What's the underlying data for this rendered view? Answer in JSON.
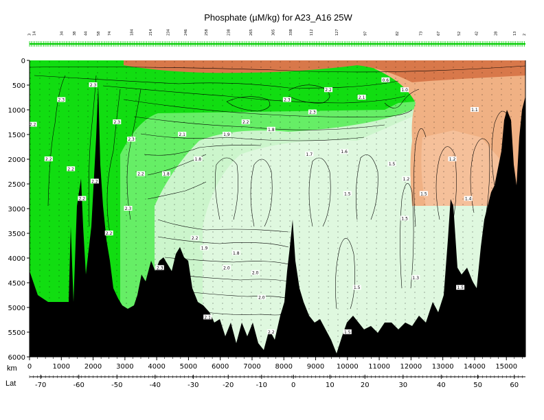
{
  "chart_data": {
    "type": "heatmap",
    "title": "Phosphate (µM/kg) for A23_A16 25W",
    "xlabel": "km",
    "lat_label": "Lat",
    "xlim": [
      0,
      15600
    ],
    "ylim": [
      6000,
      0
    ],
    "x_ticks": [
      0,
      1000,
      2000,
      3000,
      4000,
      5000,
      6000,
      7000,
      8000,
      9000,
      10000,
      11000,
      12000,
      13000,
      14000,
      15000
    ],
    "y_ticks": [
      0,
      500,
      1000,
      1500,
      2000,
      2500,
      3000,
      3500,
      4000,
      4500,
      5000,
      5500,
      6000
    ],
    "lat_ticks": [
      {
        "lat": "-70",
        "km": 350
      },
      {
        "lat": "-60",
        "km": 1550
      },
      {
        "lat": "-50",
        "km": 2750
      },
      {
        "lat": "-40",
        "km": 3950
      },
      {
        "lat": "-30",
        "km": 5150
      },
      {
        "lat": "-20",
        "km": 6250
      },
      {
        "lat": "-10",
        "km": 7300
      },
      {
        "lat": "0",
        "km": 8300
      },
      {
        "lat": "10",
        "km": 9450
      },
      {
        "lat": "20",
        "km": 10550
      },
      {
        "lat": "30",
        "km": 11750
      },
      {
        "lat": "40",
        "km": 12950
      },
      {
        "lat": "50",
        "km": 14100
      },
      {
        "lat": "60",
        "km": 15250
      }
    ],
    "stations": [
      {
        "label": "3",
        "km": 30
      },
      {
        "label": "14",
        "km": 180
      },
      {
        "label": "34",
        "km": 1050
      },
      {
        "label": "38",
        "km": 1450
      },
      {
        "label": "44",
        "km": 1800
      },
      {
        "label": "58",
        "km": 2200
      },
      {
        "label": "74",
        "km": 2550
      },
      {
        "label": "184",
        "km": 3250
      },
      {
        "label": "214",
        "km": 3850
      },
      {
        "label": "234",
        "km": 4400
      },
      {
        "label": "246",
        "km": 4950
      },
      {
        "label": "258",
        "km": 5600
      },
      {
        "label": "238",
        "km": 6300
      },
      {
        "label": "265",
        "km": 7000
      },
      {
        "label": "305",
        "km": 7700
      },
      {
        "label": "338",
        "km": 8250
      },
      {
        "label": "112",
        "km": 8900
      },
      {
        "label": "127",
        "km": 9700
      },
      {
        "label": "97",
        "km": 10600
      },
      {
        "label": "82",
        "km": 11600
      },
      {
        "label": "73",
        "km": 12350
      },
      {
        "label": "67",
        "km": 12900
      },
      {
        "label": "52",
        "km": 13550
      },
      {
        "label": "42",
        "km": 14100
      },
      {
        "label": "28",
        "km": 14700
      },
      {
        "label": "13",
        "km": 15300
      },
      {
        "label": "2",
        "km": 15600
      }
    ],
    "colorbands": [
      {
        "min": 2.0,
        "color": "#11dd11"
      },
      {
        "min": 1.6,
        "color": "#66ee66"
      },
      {
        "min": 1.2,
        "color": "#ccf5cc"
      },
      {
        "min": 0.6,
        "color": "#f0b184"
      },
      {
        "min": 0.0,
        "color": "#d8784a"
      }
    ],
    "contour_labels": [
      {
        "text": "2.2",
        "km": 100,
        "d": 1300
      },
      {
        "text": "2.2",
        "km": 600,
        "d": 2000
      },
      {
        "text": "2.3",
        "km": 1000,
        "d": 800
      },
      {
        "text": "2.2",
        "km": 1300,
        "d": 2200
      },
      {
        "text": "2.2",
        "km": 1650,
        "d": 2800
      },
      {
        "text": "2.3",
        "km": 2000,
        "d": 500
      },
      {
        "text": "2.2",
        "km": 2050,
        "d": 2450
      },
      {
        "text": "2.2",
        "km": 2500,
        "d": 3500
      },
      {
        "text": "2.3",
        "km": 2750,
        "d": 1250
      },
      {
        "text": "2.3",
        "km": 3100,
        "d": 3000
      },
      {
        "text": "2.3",
        "km": 3200,
        "d": 1600
      },
      {
        "text": "2.2",
        "km": 3500,
        "d": 2300
      },
      {
        "text": "1.8",
        "km": 4300,
        "d": 2300
      },
      {
        "text": "2.3",
        "km": 4100,
        "d": 4200
      },
      {
        "text": "2.1",
        "km": 4800,
        "d": 1500
      },
      {
        "text": "2.2",
        "km": 5200,
        "d": 3600
      },
      {
        "text": "1.9",
        "km": 5500,
        "d": 3800
      },
      {
        "text": "1.8",
        "km": 5300,
        "d": 2000
      },
      {
        "text": "2.0",
        "km": 6200,
        "d": 4200
      },
      {
        "text": "2.1",
        "km": 5600,
        "d": 5200
      },
      {
        "text": "1.8",
        "km": 6500,
        "d": 3900
      },
      {
        "text": "2.2",
        "km": 6800,
        "d": 1250
      },
      {
        "text": "2.0",
        "km": 7100,
        "d": 4300
      },
      {
        "text": "2.0",
        "km": 7300,
        "d": 4800
      },
      {
        "text": "2.2",
        "km": 7600,
        "d": 5500
      },
      {
        "text": "1.9",
        "km": 6200,
        "d": 1500
      },
      {
        "text": "1.8",
        "km": 7600,
        "d": 1400
      },
      {
        "text": "2.3",
        "km": 8100,
        "d": 800
      },
      {
        "text": "1.7",
        "km": 8800,
        "d": 1900
      },
      {
        "text": "2.3",
        "km": 8900,
        "d": 1050
      },
      {
        "text": "1.6",
        "km": 9900,
        "d": 1850
      },
      {
        "text": "1.5",
        "km": 10000,
        "d": 2700
      },
      {
        "text": "1.5",
        "km": 10300,
        "d": 4600
      },
      {
        "text": "2.2",
        "km": 9400,
        "d": 600
      },
      {
        "text": "1.5",
        "km": 10000,
        "d": 5500
      },
      {
        "text": "2.1",
        "km": 10450,
        "d": 750
      },
      {
        "text": "1.5",
        "km": 11400,
        "d": 2100
      },
      {
        "text": "1.2",
        "km": 11850,
        "d": 2400
      },
      {
        "text": "1.5",
        "km": 11800,
        "d": 3200
      },
      {
        "text": "1.3",
        "km": 12150,
        "d": 4400
      },
      {
        "text": "1.5",
        "km": 12400,
        "d": 2700
      },
      {
        "text": "1.2",
        "km": 13300,
        "d": 2000
      },
      {
        "text": "1.5",
        "km": 13550,
        "d": 4600
      },
      {
        "text": "1.4",
        "km": 13800,
        "d": 2800
      },
      {
        "text": "1.1",
        "km": 14000,
        "d": 1000
      },
      {
        "text": "0.6",
        "km": 11200,
        "d": 400
      },
      {
        "text": "1.0",
        "km": 11800,
        "d": 600
      }
    ]
  }
}
